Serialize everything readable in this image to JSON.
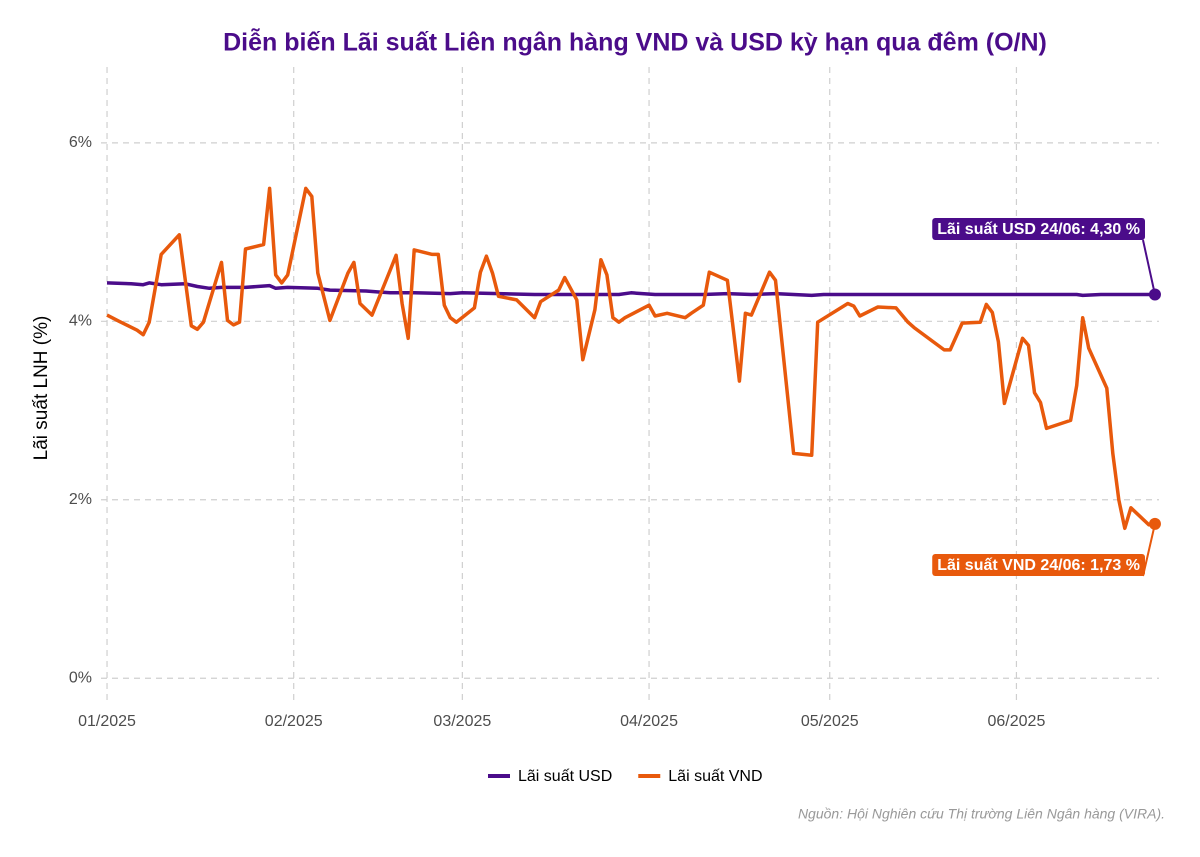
{
  "chart_data": {
    "type": "line",
    "title": "Diễn biến Lãi suất Liên ngân hàng VND và USD kỳ hạn qua đêm (O/N)",
    "y_label": "Lãi suất LNH (%)",
    "source": "Nguồn: Hội Nghiên cứu Thị trường Liên Ngân hàng (VIRA).",
    "xlim": [
      0,
      177
    ],
    "xticks": [
      {
        "value": 1,
        "label": "01/2025"
      },
      {
        "value": 32,
        "label": "02/2025"
      },
      {
        "value": 60,
        "label": "03/2025"
      },
      {
        "value": 91,
        "label": "04/2025"
      },
      {
        "value": 121,
        "label": "05/2025"
      },
      {
        "value": 152,
        "label": "06/2025"
      }
    ],
    "ylim": [
      -0.3,
      6.85
    ],
    "yticks": [
      {
        "value": 0,
        "label": "0%"
      },
      {
        "value": 2,
        "label": "2%"
      },
      {
        "value": 4,
        "label": "4%"
      },
      {
        "value": 6,
        "label": "6%"
      }
    ],
    "grid": true,
    "legend": "bottom",
    "series": [
      {
        "name": "Lãi suất USD",
        "color": "#4b0c8a",
        "annotation": "Lãi suất USD 24/06: 4,30 %",
        "x": [
          1,
          5,
          7,
          8,
          10,
          14,
          16,
          18,
          20,
          24,
          28,
          29,
          31,
          36,
          38,
          44,
          48,
          52,
          58,
          60,
          66,
          72,
          80,
          86,
          88,
          92,
          100,
          104,
          108,
          112,
          118,
          120,
          140,
          162,
          163,
          166,
          175
        ],
        "values": [
          4.43,
          4.42,
          4.41,
          4.43,
          4.41,
          4.42,
          4.39,
          4.37,
          4.38,
          4.38,
          4.4,
          4.37,
          4.38,
          4.37,
          4.35,
          4.34,
          4.32,
          4.32,
          4.31,
          4.32,
          4.31,
          4.3,
          4.3,
          4.3,
          4.32,
          4.3,
          4.3,
          4.31,
          4.3,
          4.31,
          4.29,
          4.3,
          4.3,
          4.3,
          4.29,
          4.3,
          4.3
        ]
      },
      {
        "name": "Lãi suất VND",
        "color": "#e8590c",
        "annotation": "Lãi suất VND 24/06: 1,73 %",
        "x": [
          1,
          3,
          6,
          7,
          8,
          10,
          13,
          15,
          16,
          17,
          20,
          21,
          22,
          23,
          24,
          27,
          28,
          29,
          30,
          31,
          34,
          35,
          36,
          38,
          41,
          42,
          43,
          45,
          48,
          49,
          50,
          51,
          52,
          55,
          56,
          57,
          58,
          59,
          62,
          63,
          64,
          65,
          66,
          69,
          72,
          73,
          76,
          77,
          79,
          80,
          82,
          83,
          84,
          85,
          86,
          87,
          91,
          92,
          94,
          97,
          98,
          100,
          101,
          104,
          105,
          106,
          107,
          108,
          111,
          112,
          115,
          118,
          119,
          124,
          125,
          126,
          129,
          132,
          134,
          135,
          140,
          141,
          143,
          146,
          147,
          148,
          149,
          150,
          153,
          154,
          155,
          156,
          157,
          161,
          162,
          163,
          164,
          167,
          168,
          169,
          170,
          171,
          174,
          175
        ],
        "values": [
          4.07,
          4.0,
          3.9,
          3.85,
          3.99,
          4.75,
          4.97,
          3.95,
          3.91,
          3.99,
          4.66,
          4.01,
          3.96,
          3.99,
          4.81,
          4.86,
          5.49,
          4.52,
          4.43,
          4.52,
          5.49,
          5.4,
          4.54,
          4.01,
          4.54,
          4.66,
          4.2,
          4.07,
          4.57,
          4.74,
          4.2,
          3.81,
          4.8,
          4.75,
          4.75,
          4.18,
          4.04,
          3.99,
          4.15,
          4.55,
          4.73,
          4.54,
          4.28,
          4.24,
          4.04,
          4.22,
          4.35,
          4.49,
          4.24,
          3.57,
          4.13,
          4.69,
          4.52,
          4.04,
          3.99,
          4.04,
          4.18,
          4.06,
          4.09,
          4.04,
          4.09,
          4.18,
          4.55,
          4.46,
          3.9,
          3.33,
          4.09,
          4.07,
          4.55,
          4.46,
          2.52,
          2.5,
          3.99,
          4.2,
          4.17,
          4.06,
          4.16,
          4.15,
          3.99,
          3.93,
          3.68,
          3.68,
          3.98,
          3.99,
          4.19,
          4.1,
          3.77,
          3.08,
          3.81,
          3.73,
          3.2,
          3.09,
          2.8,
          2.89,
          3.28,
          4.04,
          3.7,
          3.25,
          2.52,
          2.0,
          1.68,
          1.91,
          1.72,
          1.73
        ]
      }
    ]
  }
}
